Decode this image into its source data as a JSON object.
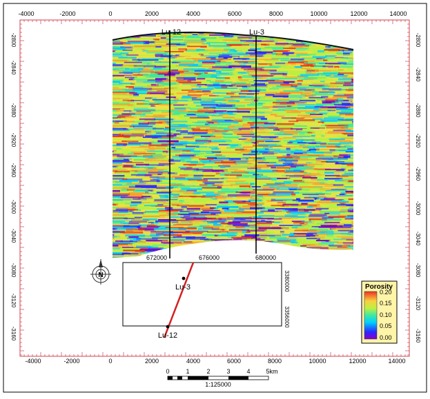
{
  "axes": {
    "x_top_ticks": [
      "-4000",
      "-2000",
      "0",
      "2000",
      "4000",
      "6000",
      "8000",
      "10000",
      "12000",
      "14000"
    ],
    "x_bottom_ticks": [
      "-4000",
      "-2000",
      "0",
      "2000",
      "4000",
      "6000",
      "8000",
      "10000",
      "12000",
      "14000"
    ],
    "y_left_ticks": [
      "-2800",
      "-2840",
      "-2880",
      "-2920",
      "-2960",
      "-3000",
      "-3040",
      "-3080",
      "-3120",
      "-3160"
    ],
    "y_right_ticks": [
      "-2800",
      "-2840",
      "-2880",
      "-2920",
      "-2960",
      "-3000",
      "-3040",
      "-3080",
      "-3120",
      "-3160"
    ]
  },
  "wells": [
    {
      "name": "Lu-12"
    },
    {
      "name": "Lu-3"
    }
  ],
  "inset_map": {
    "x_ticks": [
      "672000",
      "676000",
      "680000"
    ],
    "y_ticks": [
      "3380000",
      "3356000"
    ],
    "well_labels": [
      "Lu-3",
      "Lu-12"
    ]
  },
  "legend": {
    "title": "Porosity",
    "ticks": [
      "0.20",
      "0.15",
      "0.10",
      "0.05",
      "0.00"
    ]
  },
  "scale_bar": {
    "ticks": [
      "0",
      "1",
      "2",
      "3",
      "4",
      "5km"
    ],
    "ratio": "1:125000"
  },
  "colors": {
    "frame_tick": "#d0404a",
    "well_track": "#d42020",
    "porosity_ramp": [
      "#7a00c8",
      "#2a2aff",
      "#00c8ff",
      "#38e8a0",
      "#b8f040",
      "#f0e040",
      "#f8a030",
      "#e83020"
    ]
  }
}
